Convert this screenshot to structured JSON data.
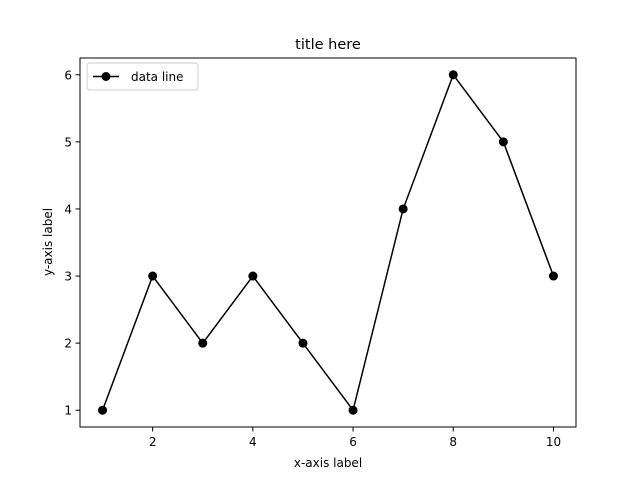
{
  "chart_data": {
    "type": "line",
    "title": "title here",
    "xlabel": "x-axis label",
    "ylabel": "y-axis label",
    "x": [
      1,
      2,
      3,
      4,
      5,
      6,
      7,
      8,
      9,
      10
    ],
    "series": [
      {
        "name": "data line",
        "values": [
          1,
          3,
          2,
          3,
          2,
          1,
          4,
          6,
          5,
          3
        ],
        "color": "#000000",
        "marker": "circle"
      }
    ],
    "xlim": [
      0.55,
      10.45
    ],
    "ylim": [
      0.75,
      6.25
    ],
    "xticks": [
      2,
      4,
      6,
      8,
      10
    ],
    "xtick_labels": [
      "2",
      "4",
      "6",
      "8",
      "10"
    ],
    "yticks": [
      1,
      2,
      3,
      4,
      5,
      6
    ],
    "ytick_labels": [
      "1",
      "2",
      "3",
      "4",
      "5",
      "6"
    ],
    "grid": false,
    "legend_position": "upper-left"
  }
}
